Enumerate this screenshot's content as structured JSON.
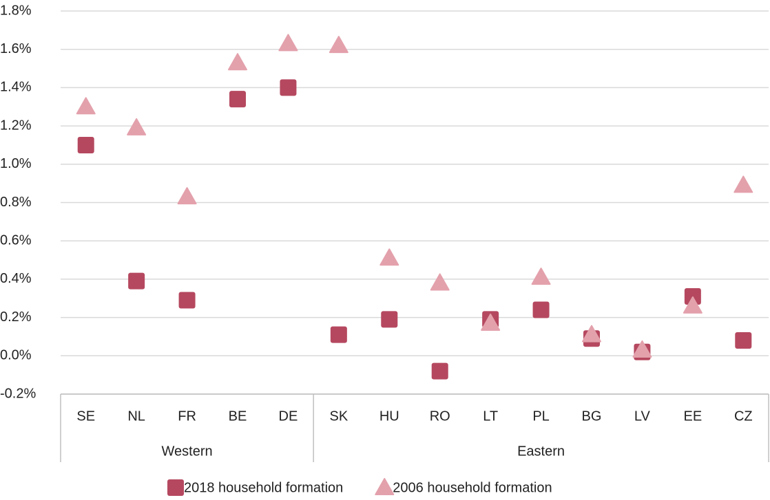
{
  "chart_data": {
    "type": "scatter",
    "categories": [
      "SE",
      "NL",
      "FR",
      "BE",
      "DE",
      "SK",
      "HU",
      "RO",
      "LT",
      "PL",
      "BG",
      "LV",
      "EE",
      "CZ"
    ],
    "category_groups": [
      "Western",
      "Western",
      "Western",
      "Western",
      "Western",
      "Eastern",
      "Eastern",
      "Eastern",
      "Eastern",
      "Eastern",
      "Eastern",
      "Eastern",
      "Eastern",
      "Eastern"
    ],
    "series": [
      {
        "name": "2018 household formation",
        "color": "#b5485f",
        "marker": "square",
        "values": [
          1.1,
          0.39,
          0.29,
          1.34,
          1.4,
          0.11,
          0.19,
          -0.08,
          0.19,
          0.24,
          0.09,
          0.02,
          0.31,
          0.08
        ]
      },
      {
        "name": "2006 household formation",
        "color": "#e3a1ac",
        "marker": "triangle",
        "values": [
          1.3,
          1.19,
          0.83,
          1.53,
          1.63,
          1.62,
          0.51,
          0.38,
          0.17,
          0.41,
          0.11,
          0.03,
          0.26,
          0.89
        ]
      }
    ],
    "ylim": [
      -0.2,
      1.8
    ],
    "yticks": [
      {
        "value": -0.2,
        "label": "-0.2%"
      },
      {
        "value": 0,
        "label": "0.0%"
      },
      {
        "value": 0.2,
        "label": "0.2%"
      },
      {
        "value": 0.4,
        "label": "0.4%"
      },
      {
        "value": 0.6,
        "label": "0.6%"
      },
      {
        "value": 0.8,
        "label": "0.8%"
      },
      {
        "value": 1.0,
        "label": "1.0%"
      },
      {
        "value": 1.2,
        "label": "1.2%"
      },
      {
        "value": 1.4,
        "label": "1.4%"
      },
      {
        "value": 1.6,
        "label": "1.6%"
      },
      {
        "value": 1.8,
        "label": "1.8%"
      }
    ],
    "grid": true,
    "legend": "bottom"
  }
}
